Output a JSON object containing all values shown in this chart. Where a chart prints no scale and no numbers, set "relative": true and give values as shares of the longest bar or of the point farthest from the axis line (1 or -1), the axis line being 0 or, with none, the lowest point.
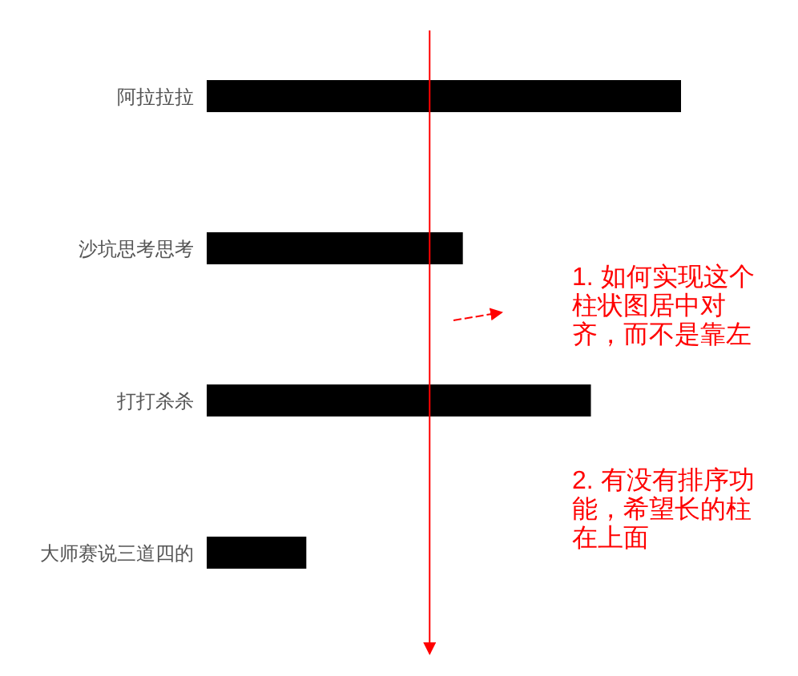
{
  "chart_data": {
    "type": "bar",
    "orientation": "horizontal",
    "relative": true,
    "categories": [
      "阿拉拉拉",
      "沙坑思考思考",
      "打打杀杀",
      "大师赛说三道四的"
    ],
    "values": [
      1,
      0.54,
      0.81,
      0.21
    ],
    "color": "#000000",
    "ref_lines": [
      {
        "axis": "x",
        "value": 0.47,
        "color": "#ff0000"
      }
    ],
    "annotations": [
      "1. 如何实现这个柱状图居中对齐，而不是靠左",
      "2. 有没有排序功能，希望长的柱在上面"
    ]
  }
}
